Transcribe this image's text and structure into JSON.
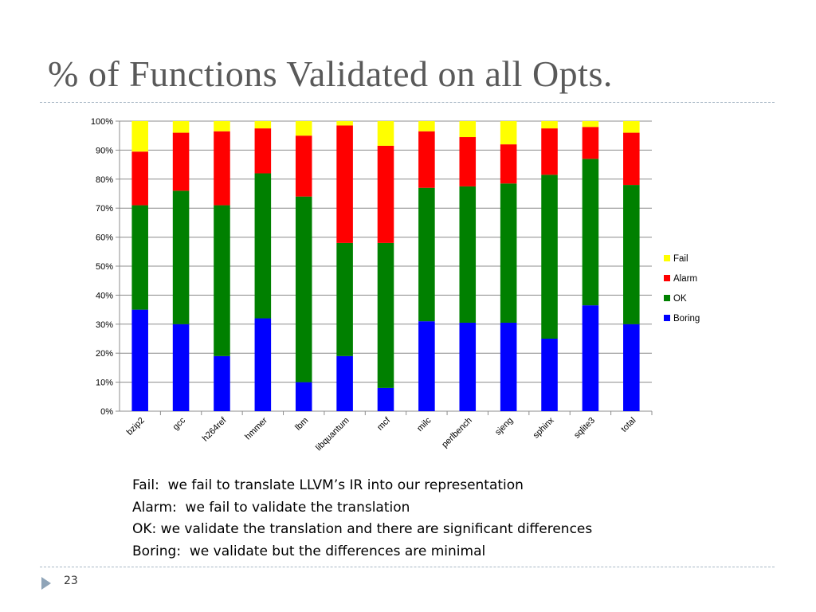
{
  "slide": {
    "title": "% of Functions Validated on all Opts.",
    "number": "23"
  },
  "notes": [
    "Fail:  we fail to translate LLVM’s IR into our representation",
    "Alarm:  we fail to validate the translation",
    "OK: we validate the translation and there are significant differences",
    "Boring:  we validate but the differences are minimal"
  ],
  "chart_data": {
    "type": "bar",
    "stacked": true,
    "categories": [
      "bzip2",
      "gcc",
      "h264ref",
      "hmmer",
      "lbm",
      "libquantum",
      "mcf",
      "milc",
      "perlbench",
      "sjeng",
      "sphinx",
      "sqlite3",
      "total"
    ],
    "series": [
      {
        "name": "Boring",
        "color": "#0000ff",
        "values": [
          35,
          30,
          19,
          32,
          10,
          19,
          8,
          31,
          30.5,
          30.5,
          25,
          36.5,
          30
        ]
      },
      {
        "name": "OK",
        "color": "#008000",
        "values": [
          36,
          46,
          52,
          50,
          64,
          39,
          50,
          46,
          47,
          48,
          56.5,
          50.5,
          48
        ]
      },
      {
        "name": "Alarm",
        "color": "#ff0000",
        "values": [
          18.5,
          20,
          25.5,
          15.5,
          21,
          40.5,
          33.5,
          19.5,
          17,
          13.5,
          16,
          11,
          18
        ]
      },
      {
        "name": "Fail",
        "color": "#ffff00",
        "values": [
          10.5,
          4,
          3.5,
          2.5,
          5,
          1.5,
          8.5,
          3.5,
          5.5,
          8,
          2.5,
          2,
          4
        ]
      }
    ],
    "legend_order": [
      "Fail",
      "Alarm",
      "OK",
      "Boring"
    ],
    "y_ticks": [
      "0%",
      "10%",
      "20%",
      "30%",
      "40%",
      "50%",
      "60%",
      "70%",
      "80%",
      "90%",
      "100%"
    ],
    "ylim": [
      0,
      100
    ],
    "grid": true,
    "legend_position": "right",
    "title": "",
    "xlabel": "",
    "ylabel": ""
  }
}
